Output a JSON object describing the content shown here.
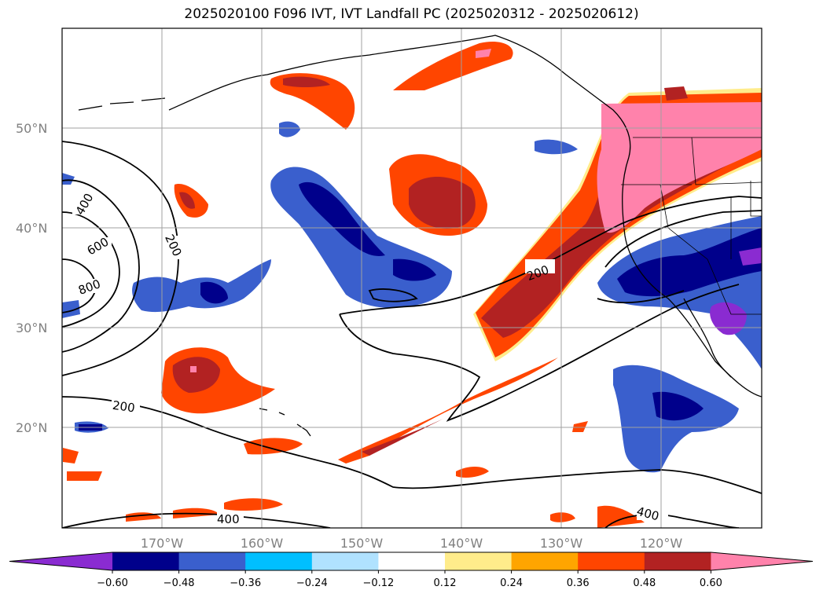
{
  "title": "2025020100 F096 IVT, IVT Landfall PC (2025020312 - 2025020612)",
  "lat_labels": [
    "50°N",
    "40°N",
    "30°N",
    "20°N"
  ],
  "lon_labels": [
    "170°W",
    "160°W",
    "150°W",
    "140°W",
    "130°W",
    "120°W"
  ],
  "colorbar": {
    "ticks": [
      "−0.60",
      "−0.48",
      "−0.36",
      "−0.24",
      "−0.12",
      "0.12",
      "0.24",
      "0.36",
      "0.48",
      "0.60"
    ],
    "colors": [
      "#8a2bd1",
      "#00008b",
      "#3a5fcd",
      "#00bfff",
      "#b0e2ff",
      "#ffffff",
      "#ffec8b",
      "#ffa500",
      "#ff4500",
      "#b22222",
      "#ff82ab"
    ]
  },
  "contour_labels": [
    "400",
    "600",
    "800",
    "200",
    "200",
    "200",
    "400",
    "400"
  ],
  "colors": {
    "negative_dark": "#00008b",
    "negative_mid": "#3a5fcd",
    "positive_red": "#ff4500",
    "positive_darkred": "#b22222",
    "positive_pink": "#ff82ab"
  }
}
